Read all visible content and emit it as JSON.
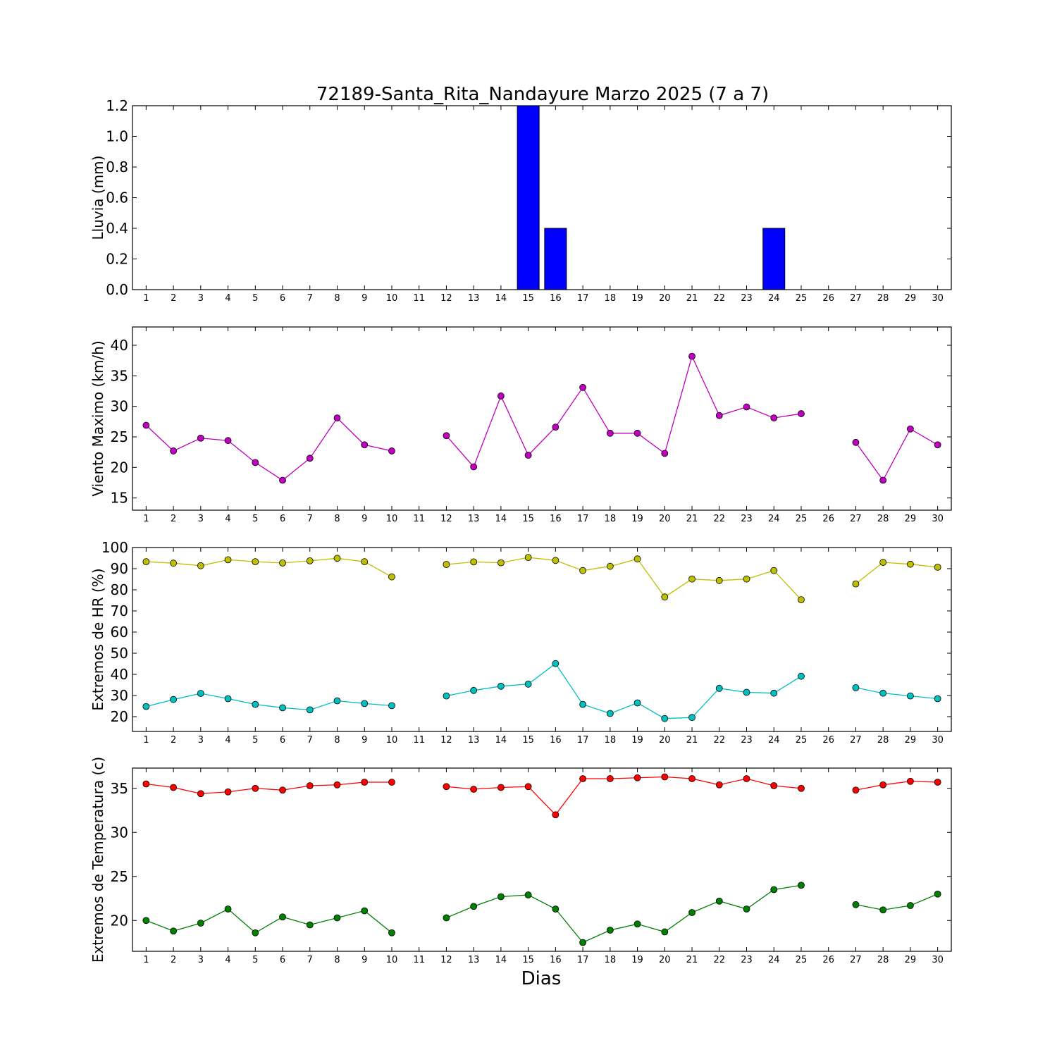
{
  "title": "72189-Santa_Rita_Nandayure Marzo 2025  (7 a 7)",
  "xlabel": "Dias",
  "colors": {
    "lluvia": "#0000ff",
    "viento": "#bf00bf",
    "hr_max": "#bfbf00",
    "hr_min": "#00bfbf",
    "temp_max": "#ff0000",
    "temp_min": "#008000"
  },
  "chart_data": [
    {
      "type": "bar",
      "ylabel": "Lluvia (mm)",
      "ylim": [
        0,
        1.2
      ],
      "yticks": [
        "0.0",
        "0.2",
        "0.4",
        "0.6",
        "0.8",
        "1.0",
        "1.2"
      ],
      "x": [
        1,
        2,
        3,
        4,
        5,
        6,
        7,
        8,
        9,
        10,
        11,
        12,
        13,
        14,
        15,
        16,
        17,
        18,
        19,
        20,
        21,
        22,
        23,
        24,
        25,
        26,
        27,
        28,
        29,
        30
      ],
      "series": [
        {
          "values": [
            0,
            0,
            0,
            0,
            0,
            0,
            0,
            0,
            0,
            0,
            0,
            0,
            0,
            0,
            1.2,
            0.4,
            0,
            0,
            0,
            0,
            0,
            0,
            0,
            0.4,
            0,
            0,
            0,
            0,
            0,
            0
          ]
        }
      ]
    },
    {
      "type": "line",
      "ylabel": "Viento Maximo (km/h)",
      "ylim": [
        13,
        43
      ],
      "yticks": [
        "15",
        "20",
        "25",
        "30",
        "35",
        "40"
      ],
      "x": [
        1,
        2,
        3,
        4,
        5,
        6,
        7,
        8,
        9,
        10,
        11,
        12,
        13,
        14,
        15,
        16,
        17,
        18,
        19,
        20,
        21,
        22,
        23,
        24,
        25,
        26,
        27,
        28,
        29,
        30
      ],
      "series": [
        {
          "values": [
            26.9,
            22.7,
            24.8,
            24.4,
            20.8,
            17.9,
            21.5,
            28.1,
            23.7,
            22.7,
            null,
            25.2,
            20.1,
            31.7,
            22.0,
            26.6,
            33.1,
            25.6,
            25.6,
            22.3,
            38.2,
            28.5,
            29.9,
            28.1,
            28.8,
            null,
            24.1,
            17.9,
            26.3,
            23.7
          ]
        }
      ]
    },
    {
      "type": "line",
      "ylabel": "Extremos de HR (%)",
      "ylim": [
        13,
        100
      ],
      "yticks": [
        "20",
        "30",
        "40",
        "50",
        "60",
        "70",
        "80",
        "90",
        "100"
      ],
      "x": [
        1,
        2,
        3,
        4,
        5,
        6,
        7,
        8,
        9,
        10,
        11,
        12,
        13,
        14,
        15,
        16,
        17,
        18,
        19,
        20,
        21,
        22,
        23,
        24,
        25,
        26,
        27,
        28,
        29,
        30
      ],
      "series": [
        {
          "values": [
            93.3,
            92.6,
            91.4,
            94.2,
            93.3,
            92.7,
            93.7,
            94.9,
            93.3,
            86.1,
            null,
            92.0,
            93.2,
            92.8,
            95.3,
            93.9,
            89.1,
            91.1,
            94.6,
            76.6,
            85.1,
            84.4,
            85.1,
            89.1,
            75.3,
            null,
            82.8,
            93.0,
            92.1,
            90.7
          ]
        },
        {
          "values": [
            24.8,
            28.1,
            31.0,
            28.5,
            25.8,
            24.2,
            23.2,
            27.5,
            26.2,
            25.2,
            null,
            29.8,
            32.4,
            34.4,
            35.4,
            45.1,
            25.8,
            21.5,
            26.5,
            19.1,
            19.6,
            33.4,
            31.5,
            31.1,
            39.1,
            null,
            33.7,
            31.1,
            29.8,
            28.5
          ]
        }
      ]
    },
    {
      "type": "line",
      "ylabel": "Extremos de Temperatura (c)",
      "ylim": [
        16.5,
        37.3
      ],
      "yticks": [
        "20",
        "25",
        "30",
        "35"
      ],
      "x": [
        1,
        2,
        3,
        4,
        5,
        6,
        7,
        8,
        9,
        10,
        11,
        12,
        13,
        14,
        15,
        16,
        17,
        18,
        19,
        20,
        21,
        22,
        23,
        24,
        25,
        26,
        27,
        28,
        29,
        30
      ],
      "series": [
        {
          "values": [
            35.5,
            35.1,
            34.4,
            34.6,
            35.0,
            34.8,
            35.3,
            35.4,
            35.7,
            35.7,
            null,
            35.2,
            34.9,
            35.1,
            35.2,
            32.0,
            36.1,
            36.1,
            36.2,
            36.3,
            36.1,
            35.4,
            36.1,
            35.3,
            35.0,
            null,
            34.8,
            35.4,
            35.8,
            35.7
          ]
        },
        {
          "values": [
            20.0,
            18.8,
            19.7,
            21.3,
            18.6,
            20.4,
            19.5,
            20.3,
            21.1,
            18.6,
            null,
            20.3,
            21.6,
            22.7,
            22.9,
            21.3,
            17.5,
            18.9,
            19.6,
            18.7,
            20.9,
            22.2,
            21.3,
            23.5,
            24.0,
            null,
            21.8,
            21.2,
            21.7,
            23.0
          ]
        }
      ]
    }
  ]
}
